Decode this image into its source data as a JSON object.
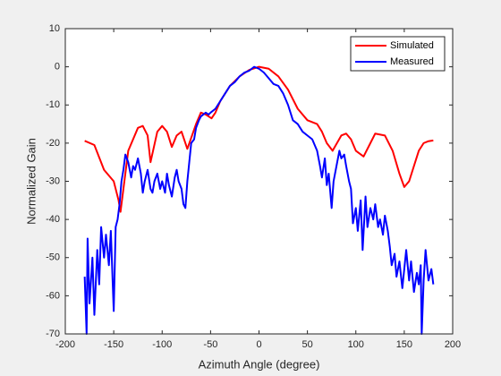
{
  "chart_data": {
    "type": "line",
    "xlabel": "Azimuth Angle (degree)",
    "ylabel": "Normalized Gain",
    "xlim": [
      -200,
      200
    ],
    "ylim": [
      -70,
      10
    ],
    "xticks": [
      -200,
      -150,
      -100,
      -50,
      0,
      50,
      100,
      150,
      200
    ],
    "yticks": [
      -70,
      -60,
      -50,
      -40,
      -30,
      -20,
      -10,
      0,
      10
    ],
    "grid": false,
    "legend": "northeast",
    "series": [
      {
        "name": "Simulated",
        "color": "#ff0000",
        "x": [
          -180,
          -170,
          -160,
          -150,
          -145,
          -143,
          -135,
          -125,
          -120,
          -115,
          -112,
          -105,
          -100,
          -95,
          -90,
          -85,
          -80,
          -74,
          -65,
          -60,
          -55,
          -49,
          -45,
          -40,
          -30,
          -20,
          -10,
          0,
          10,
          20,
          30,
          40,
          50,
          55,
          60,
          65,
          70,
          76,
          85,
          90,
          95,
          100,
          108,
          115,
          120,
          130,
          138,
          145,
          150,
          155,
          160,
          165,
          170,
          175,
          180
        ],
        "values": [
          -19.4,
          -20.5,
          -27,
          -30,
          -35,
          -38,
          -22,
          -16,
          -15.5,
          -18,
          -25,
          -17,
          -15.5,
          -17,
          -21,
          -18,
          -17,
          -21.5,
          -15,
          -12,
          -12.5,
          -13.5,
          -12,
          -9,
          -5,
          -2.5,
          -0.8,
          0,
          -0.5,
          -2.5,
          -6,
          -11,
          -14,
          -14.5,
          -15,
          -17,
          -20,
          -22,
          -18,
          -17.5,
          -19,
          -22,
          -23.5,
          -20,
          -17.5,
          -18,
          -22,
          -28,
          -31.5,
          -30,
          -26,
          -22,
          -20,
          -19.5,
          -19.3
        ]
      },
      {
        "name": "Measured",
        "color": "#0000ff",
        "x": [
          -180,
          -178,
          -177,
          -175,
          -172,
          -170,
          -167,
          -165,
          -163,
          -160,
          -158,
          -155,
          -153,
          -151,
          -150,
          -148,
          -146,
          -144,
          -142,
          -140,
          -138,
          -135,
          -132,
          -130,
          -128,
          -125,
          -122,
          -120,
          -118,
          -115,
          -112,
          -110,
          -108,
          -105,
          -102,
          -100,
          -97,
          -95,
          -93,
          -90,
          -87,
          -85,
          -83,
          -80,
          -78,
          -76,
          -74,
          -72,
          -70,
          -67,
          -65,
          -62,
          -60,
          -55,
          -52,
          -50,
          -45,
          -40,
          -35,
          -30,
          -25,
          -20,
          -15,
          -10,
          -5,
          0,
          5,
          10,
          15,
          20,
          25,
          30,
          35,
          40,
          45,
          50,
          55,
          60,
          63,
          65,
          68,
          70,
          72,
          75,
          77,
          80,
          83,
          85,
          88,
          90,
          93,
          95,
          97,
          100,
          102,
          105,
          107,
          110,
          112,
          115,
          118,
          120,
          123,
          125,
          128,
          130,
          133,
          135,
          137,
          140,
          142,
          145,
          148,
          150,
          152,
          155,
          157,
          160,
          163,
          165,
          167,
          168,
          170,
          172,
          175,
          178,
          180
        ],
        "values": [
          -55,
          -70,
          -45,
          -62,
          -50,
          -65,
          -48,
          -57,
          -42,
          -50,
          -44,
          -52,
          -43,
          -57,
          -64,
          -42,
          -40,
          -36,
          -30,
          -27,
          -23,
          -25,
          -29,
          -26,
          -27,
          -24,
          -28,
          -33,
          -30,
          -27,
          -32,
          -33,
          -30,
          -28,
          -32,
          -30,
          -33,
          -28,
          -31,
          -34,
          -29,
          -27,
          -30,
          -32,
          -36,
          -37,
          -30,
          -25,
          -20,
          -19,
          -16,
          -14,
          -13,
          -12,
          -12.5,
          -12,
          -11,
          -9,
          -7,
          -5,
          -4,
          -2.5,
          -1.5,
          -1,
          0,
          -0.5,
          -1.5,
          -3,
          -4.5,
          -5,
          -7,
          -10,
          -14,
          -15,
          -17,
          -18,
          -19,
          -22,
          -26,
          -29,
          -24,
          -31,
          -28,
          -37,
          -30,
          -26,
          -22,
          -24,
          -23,
          -26,
          -30,
          -32,
          -41,
          -37,
          -43,
          -35,
          -48,
          -34,
          -42,
          -37,
          -40,
          -36,
          -42,
          -40,
          -44,
          -39,
          -43,
          -47,
          -52,
          -49,
          -55,
          -51,
          -58,
          -53,
          -48,
          -56,
          -51,
          -59,
          -54,
          -57,
          -52,
          -70,
          -56,
          -48,
          -56,
          -53,
          -57
        ]
      }
    ]
  }
}
